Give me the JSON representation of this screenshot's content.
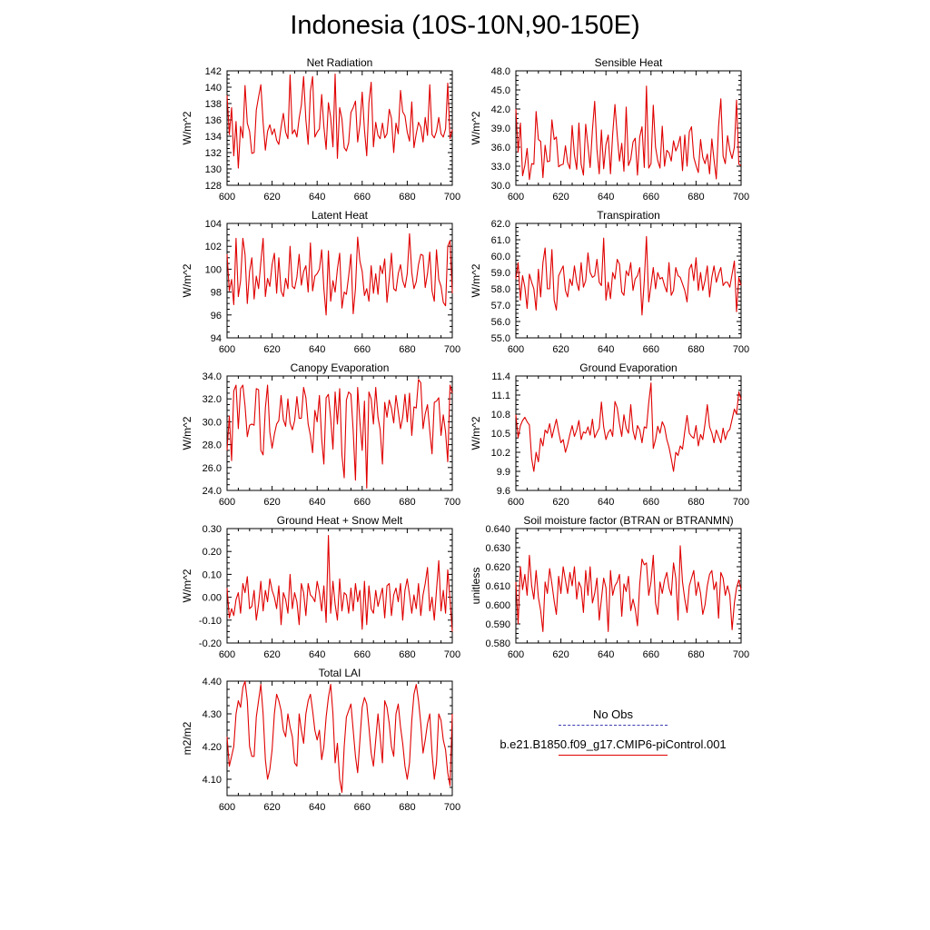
{
  "title": "Indonesia (10S-10N,90-150E)",
  "legend": {
    "entries": [
      {
        "label": "No Obs",
        "color": "#3b3bb0",
        "style": "dashed"
      },
      {
        "label": "b.e21.B1850.f09_g17.CMIP6-piControl.001",
        "color": "#e00000",
        "style": "solid"
      }
    ]
  },
  "colors": {
    "series": "#e00000",
    "axes": "#000000"
  },
  "chart_data": [
    {
      "type": "line",
      "title": "Net Radiation",
      "ylabel": "W/m^2",
      "xlim": [
        600,
        700
      ],
      "ylim": [
        128,
        142
      ],
      "xticks": [
        "600",
        "620",
        "640",
        "660",
        "680",
        "700"
      ],
      "yticks": [
        "128",
        "130",
        "132",
        "134",
        "136",
        "138",
        "140",
        "142"
      ],
      "x_start": 600,
      "values": [
        139.0,
        134.2,
        137.5,
        131.6,
        135.8,
        130.1,
        135.2,
        133.8,
        140.2,
        135.6,
        134.6,
        131.9,
        132.0,
        137.2,
        138.8,
        140.3,
        135.7,
        132.3,
        134.6,
        135.4,
        134.2,
        134.9,
        133.5,
        133.0,
        135.1,
        136.8,
        134.5,
        133.7,
        141.5,
        134.3,
        134.8,
        133.9,
        136.2,
        137.8,
        141.3,
        136.0,
        133.0,
        139.5,
        141.3,
        133.9,
        134.5,
        134.9,
        139.1,
        135.2,
        132.4,
        138.1,
        136.3,
        132.7,
        141.6,
        131.3,
        137.5,
        136.1,
        132.6,
        132.2,
        133.2,
        136.9,
        137.5,
        138.3,
        133.3,
        135.4,
        139.4,
        134.8,
        131.6,
        138.1,
        140.6,
        132.7,
        135.7,
        134.1,
        133.7,
        135.6,
        133.8,
        134.3,
        137.3,
        136.2,
        132.0,
        135.6,
        134.3,
        139.6,
        137.0,
        136.5,
        134.5,
        133.4,
        138.2,
        132.6,
        134.3,
        135.7,
        135.1,
        133.3,
        136.3,
        134.1,
        140.3,
        134.2,
        133.8,
        134.6,
        136.3,
        134.3,
        133.9,
        134.9,
        140.5,
        133.7,
        134.8
      ]
    },
    {
      "type": "line",
      "title": "Sensible Heat",
      "ylabel": "W/m^2",
      "xlim": [
        600,
        700
      ],
      "ylim": [
        30.0,
        48.0
      ],
      "xticks": [
        "600",
        "620",
        "640",
        "660",
        "680",
        "700"
      ],
      "yticks": [
        "30.0",
        "33.0",
        "36.0",
        "39.0",
        "42.0",
        "45.0",
        "48.0"
      ],
      "x_start": 600,
      "values": [
        42.0,
        35.2,
        39.8,
        31.5,
        33.1,
        35.8,
        30.9,
        33.4,
        33.3,
        41.6,
        37.2,
        36.9,
        31.2,
        36.3,
        33.7,
        33.8,
        40.3,
        37.2,
        37.6,
        32.9,
        33.2,
        33.3,
        36.2,
        33.6,
        32.6,
        39.4,
        34.8,
        32.5,
        39.8,
        33.3,
        31.6,
        39.6,
        36.2,
        32.8,
        38.7,
        43.2,
        35.6,
        31.8,
        38.7,
        32.6,
        36.4,
        37.9,
        31.8,
        38.0,
        42.7,
        37.9,
        33.8,
        36.6,
        32.2,
        42.3,
        33.1,
        34.1,
        36.8,
        37.4,
        31.6,
        37.6,
        39.2,
        32.8,
        45.6,
        32.7,
        33.4,
        42.6,
        36.0,
        33.9,
        32.7,
        39.3,
        33.0,
        35.5,
        35.1,
        33.8,
        37.0,
        35.4,
        36.3,
        37.7,
        32.3,
        37.9,
        33.0,
        38.4,
        39.2,
        34.4,
        33.1,
        32.0,
        37.2,
        34.4,
        33.4,
        34.9,
        31.8,
        37.3,
        34.0,
        31.0,
        39.3,
        43.6,
        34.6,
        33.4,
        37.8,
        35.5,
        34.2,
        36.0,
        43.4,
        33.3,
        33.1
      ]
    },
    {
      "type": "line",
      "title": "Latent Heat",
      "ylabel": "W/m^2",
      "xlim": [
        600,
        700
      ],
      "ylim": [
        94,
        104
      ],
      "xticks": [
        "600",
        "620",
        "640",
        "660",
        "680",
        "700"
      ],
      "yticks": [
        "94",
        "96",
        "98",
        "100",
        "102",
        "104"
      ],
      "x_start": 600,
      "values": [
        101.3,
        98.1,
        99.1,
        96.9,
        102.7,
        97.6,
        99.0,
        102.7,
        101.3,
        97.0,
        99.8,
        101.0,
        97.4,
        99.4,
        98.3,
        100.6,
        102.7,
        97.6,
        99.2,
        98.5,
        100.4,
        101.4,
        97.9,
        101.0,
        98.1,
        97.6,
        99.2,
        98.3,
        102.0,
        98.5,
        98.3,
        99.3,
        101.3,
        98.6,
        99.8,
        100.3,
        98.0,
        102.3,
        98.1,
        99.4,
        99.6,
        100.0,
        101.7,
        98.3,
        96.0,
        101.6,
        97.2,
        99.0,
        98.0,
        100.0,
        101.4,
        96.6,
        98.0,
        97.8,
        99.4,
        101.3,
        96.1,
        98.3,
        102.8,
        100.7,
        99.8,
        97.7,
        98.3,
        97.2,
        100.3,
        97.9,
        99.6,
        97.8,
        100.3,
        99.6,
        100.9,
        97.1,
        99.1,
        101.4,
        98.3,
        98.1,
        99.6,
        100.4,
        99.0,
        98.4,
        99.6,
        103.1,
        99.7,
        98.3,
        98.9,
        100.4,
        101.3,
        101.2,
        98.4,
        99.6,
        101.5,
        98.1,
        97.2,
        101.7,
        99.1,
        98.5,
        97.1,
        96.8,
        102.0,
        102.5,
        97.9
      ]
    },
    {
      "type": "line",
      "title": "Transpiration",
      "ylabel": "W/m^2",
      "xlim": [
        600,
        700
      ],
      "ylim": [
        55.0,
        62.0
      ],
      "xticks": [
        "600",
        "620",
        "640",
        "660",
        "680",
        "700"
      ],
      "yticks": [
        "55.0",
        "56.0",
        "57.0",
        "58.0",
        "59.0",
        "60.0",
        "61.0",
        "62.0"
      ],
      "x_start": 600,
      "values": [
        58.6,
        59.6,
        57.3,
        58.8,
        58.1,
        56.8,
        58.9,
        58.4,
        58.0,
        56.7,
        59.2,
        57.5,
        59.6,
        60.5,
        58.0,
        58.0,
        60.4,
        57.3,
        56.7,
        58.8,
        59.1,
        59.4,
        57.9,
        57.5,
        58.6,
        58.2,
        59.4,
        58.4,
        57.9,
        59.6,
        58.1,
        58.5,
        60.2,
        59.0,
        58.7,
        58.8,
        59.8,
        58.4,
        58.2,
        61.1,
        57.3,
        58.4,
        57.4,
        59.0,
        58.6,
        59.8,
        59.5,
        57.8,
        57.6,
        59.1,
        58.8,
        59.6,
        57.9,
        58.6,
        58.8,
        59.3,
        56.4,
        58.5,
        61.2,
        57.2,
        58.2,
        59.3,
        58.0,
        59.0,
        58.6,
        58.7,
        58.2,
        57.8,
        59.6,
        57.6,
        57.9,
        59.3,
        58.8,
        58.7,
        58.3,
        57.9,
        57.2,
        59.2,
        59.5,
        58.5,
        59.9,
        57.9,
        59.0,
        57.9,
        58.5,
        59.4,
        57.5,
        58.7,
        59.4,
        58.4,
        58.9,
        59.3,
        58.2,
        58.4,
        58.4,
        58.1,
        58.9,
        59.7,
        56.6,
        58.7,
        58.2
      ]
    },
    {
      "type": "line",
      "title": "Canopy Evaporation",
      "ylabel": "W/m^2",
      "xlim": [
        600,
        700
      ],
      "ylim": [
        24.0,
        34.0
      ],
      "xticks": [
        "600",
        "620",
        "640",
        "660",
        "680",
        "700"
      ],
      "yticks": [
        "24.0",
        "26.0",
        "28.0",
        "30.0",
        "32.0",
        "34.0"
      ],
      "x_start": 600,
      "values": [
        27.5,
        30.5,
        26.6,
        32.7,
        33.2,
        29.4,
        32.9,
        33.2,
        31.4,
        28.7,
        29.7,
        29.8,
        29.7,
        32.9,
        32.8,
        27.5,
        27.1,
        31.2,
        33.2,
        29.1,
        27.7,
        28.9,
        29.8,
        30.1,
        32.3,
        30.2,
        29.6,
        32.0,
        29.9,
        29.3,
        30.1,
        32.2,
        30.3,
        30.3,
        33.0,
        32.1,
        29.8,
        28.8,
        27.3,
        31.0,
        30.0,
        32.3,
        28.5,
        26.3,
        32.1,
        32.4,
        30.3,
        27.6,
        32.6,
        29.8,
        32.9,
        27.1,
        25.1,
        31.9,
        32.6,
        32.4,
        29.2,
        24.9,
        33.0,
        30.0,
        27.5,
        31.8,
        24.2,
        32.6,
        32.0,
        29.8,
        33.0,
        30.4,
        29.3,
        26.3,
        31.7,
        30.4,
        31.9,
        31.2,
        29.9,
        32.3,
        30.9,
        29.4,
        30.4,
        32.4,
        30.0,
        32.5,
        28.8,
        31.3,
        31.2,
        33.7,
        33.4,
        29.4,
        30.7,
        31.5,
        29.2,
        27.2,
        31.7,
        31.8,
        32.1,
        28.8,
        30.6,
        29.1,
        26.5,
        33.2,
        32.5
      ]
    },
    {
      "type": "line",
      "title": "Ground Evaporation",
      "ylabel": "W/m^2",
      "xlim": [
        600,
        700
      ],
      "ylim": [
        9.6,
        11.4
      ],
      "xticks": [
        "600",
        "620",
        "640",
        "660",
        "680",
        "700"
      ],
      "yticks": [
        "9.6",
        "9.9",
        "10.2",
        "10.5",
        "10.8",
        "11.1",
        "11.4"
      ],
      "x_start": 600,
      "values": [
        10.79,
        10.43,
        10.62,
        10.7,
        10.75,
        10.68,
        10.63,
        10.1,
        9.9,
        10.2,
        10.05,
        10.42,
        10.3,
        10.55,
        10.5,
        10.65,
        10.43,
        10.58,
        10.72,
        10.52,
        10.35,
        10.4,
        10.2,
        10.32,
        10.48,
        10.62,
        10.45,
        10.55,
        10.7,
        10.4,
        10.52,
        10.5,
        10.6,
        10.47,
        10.72,
        10.43,
        10.51,
        10.58,
        10.99,
        10.6,
        10.4,
        10.51,
        10.56,
        10.45,
        11.0,
        10.9,
        10.65,
        10.45,
        10.79,
        10.58,
        10.5,
        10.95,
        10.54,
        10.4,
        10.62,
        10.55,
        10.35,
        10.6,
        10.58,
        10.98,
        11.29,
        10.26,
        10.4,
        10.61,
        10.5,
        10.68,
        10.6,
        10.4,
        10.28,
        10.1,
        9.9,
        10.2,
        10.15,
        10.3,
        10.25,
        10.53,
        10.78,
        10.5,
        10.45,
        10.42,
        10.62,
        10.3,
        10.48,
        10.4,
        10.65,
        10.95,
        10.6,
        10.5,
        10.35,
        10.55,
        10.45,
        10.35,
        10.58,
        10.4,
        10.52,
        10.56,
        10.72,
        10.88,
        10.8,
        11.15,
        11.03
      ]
    },
    {
      "type": "line",
      "title": "Ground Heat + Snow Melt",
      "ylabel": "W/m^2",
      "xlim": [
        600,
        700
      ],
      "ylim": [
        -0.2,
        0.3
      ],
      "xticks": [
        "600",
        "620",
        "640",
        "660",
        "680",
        "700"
      ],
      "yticks": [
        "-0.20",
        "-0.10",
        "0.00",
        "0.10",
        "0.20",
        "0.30"
      ],
      "x_start": 600,
      "values": [
        0.04,
        -0.09,
        -0.05,
        -0.08,
        -0.01,
        0.02,
        -0.07,
        0.06,
        0.02,
        0.09,
        -0.05,
        -0.04,
        0.03,
        -0.1,
        -0.03,
        0.07,
        -0.06,
        0.03,
        -0.02,
        0.08,
        0.03,
        0.0,
        -0.05,
        0.05,
        -0.12,
        0.02,
        -0.01,
        -0.07,
        0.1,
        -0.05,
        0.02,
        -0.02,
        -0.12,
        0.06,
        0.02,
        -0.08,
        0.06,
        0.01,
        0.0,
        -0.02,
        0.07,
        0.02,
        -0.06,
        0.05,
        -0.11,
        0.27,
        -0.07,
        0.07,
        -0.03,
        -0.1,
        0.08,
        -0.06,
        0.02,
        0.01,
        -0.07,
        0.04,
        -0.06,
        0.06,
        -0.02,
        0.03,
        -0.14,
        0.07,
        -0.12,
        0.05,
        -0.05,
        -0.07,
        0.03,
        -0.04,
        0.0,
        0.04,
        -0.09,
        0.05,
        0.06,
        -0.08,
        0.01,
        0.04,
        -0.02,
        0.06,
        -0.1,
        0.03,
        0.08,
        0.01,
        -0.07,
        0.01,
        -0.05,
        0.06,
        -0.08,
        0.01,
        0.06,
        0.13,
        -0.06,
        0.0,
        -0.1,
        0.03,
        0.16,
        -0.06,
        0.03,
        -0.07,
        0.12,
        -0.01,
        -0.15
      ]
    },
    {
      "type": "line",
      "title": "Soil moisture factor (BTRAN or BTRANMN)",
      "ylabel": "unitless",
      "xlim": [
        600,
        700
      ],
      "ylim": [
        0.58,
        0.64
      ],
      "xticks": [
        "600",
        "620",
        "640",
        "660",
        "680",
        "700"
      ],
      "yticks": [
        "0.580",
        "0.590",
        "0.600",
        "0.610",
        "0.620",
        "0.630",
        "0.640"
      ],
      "x_start": 600,
      "values": [
        0.612,
        0.59,
        0.62,
        0.608,
        0.616,
        0.605,
        0.626,
        0.61,
        0.603,
        0.618,
        0.604,
        0.597,
        0.586,
        0.612,
        0.606,
        0.619,
        0.611,
        0.602,
        0.595,
        0.615,
        0.606,
        0.62,
        0.613,
        0.606,
        0.617,
        0.61,
        0.62,
        0.603,
        0.612,
        0.609,
        0.596,
        0.618,
        0.605,
        0.62,
        0.601,
        0.606,
        0.614,
        0.592,
        0.603,
        0.614,
        0.609,
        0.586,
        0.618,
        0.605,
        0.61,
        0.612,
        0.616,
        0.594,
        0.611,
        0.607,
        0.615,
        0.597,
        0.603,
        0.598,
        0.589,
        0.611,
        0.624,
        0.621,
        0.622,
        0.605,
        0.612,
        0.626,
        0.601,
        0.595,
        0.612,
        0.606,
        0.613,
        0.617,
        0.609,
        0.605,
        0.622,
        0.614,
        0.592,
        0.631,
        0.612,
        0.603,
        0.596,
        0.61,
        0.614,
        0.618,
        0.605,
        0.612,
        0.606,
        0.595,
        0.6,
        0.61,
        0.616,
        0.618,
        0.608,
        0.612,
        0.593,
        0.617,
        0.614,
        0.605,
        0.61,
        0.605,
        0.587,
        0.601,
        0.609,
        0.613,
        0.608
      ]
    },
    {
      "type": "line",
      "title": "Total LAI",
      "ylabel": "m2/m2",
      "xlim": [
        600,
        700
      ],
      "ylim": [
        4.05,
        4.4
      ],
      "xticks": [
        "600",
        "620",
        "640",
        "660",
        "680",
        "700"
      ],
      "yticks": [
        "4.10",
        "4.20",
        "4.30",
        "4.40"
      ],
      "x_start": 600,
      "values": [
        4.23,
        4.14,
        4.17,
        4.2,
        4.3,
        4.34,
        4.32,
        4.38,
        4.4,
        4.34,
        4.2,
        4.17,
        4.17,
        4.29,
        4.34,
        4.39,
        4.3,
        4.16,
        4.1,
        4.13,
        4.19,
        4.3,
        4.36,
        4.34,
        4.31,
        4.25,
        4.23,
        4.3,
        4.26,
        4.23,
        4.15,
        4.14,
        4.3,
        4.25,
        4.21,
        4.3,
        4.34,
        4.36,
        4.31,
        4.25,
        4.22,
        4.25,
        4.16,
        4.2,
        4.29,
        4.35,
        4.39,
        4.3,
        4.15,
        4.21,
        4.1,
        4.06,
        4.2,
        4.29,
        4.31,
        4.33,
        4.25,
        4.17,
        4.12,
        4.22,
        4.32,
        4.35,
        4.33,
        4.26,
        4.18,
        4.14,
        4.22,
        4.3,
        4.23,
        4.15,
        4.34,
        4.32,
        4.27,
        4.2,
        4.17,
        4.3,
        4.33,
        4.26,
        4.21,
        4.14,
        4.1,
        4.15,
        4.28,
        4.36,
        4.39,
        4.34,
        4.27,
        4.18,
        4.22,
        4.27,
        4.3,
        4.18,
        4.1,
        4.15,
        4.3,
        4.28,
        4.22,
        4.19,
        4.12,
        4.08,
        4.3
      ]
    }
  ]
}
